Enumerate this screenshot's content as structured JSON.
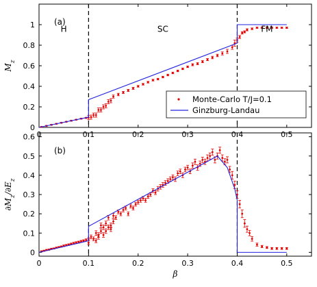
{
  "chart_data": [
    {
      "type": "scatter",
      "panel_label": "(a)",
      "ylabel": "M_z",
      "ylim": [
        0,
        1.2
      ],
      "xlim": [
        0,
        0.55
      ],
      "xticks": [
        "0",
        "0.1",
        "0.2",
        "0.3",
        "0.4",
        "0.5"
      ],
      "yticks": [
        "0",
        "0.2",
        "0.4",
        "0.6",
        "0.8",
        "1"
      ],
      "regions": [
        {
          "label": "H",
          "x": 0.05,
          "y": 0.93
        },
        {
          "label": "SC",
          "x": 0.25,
          "y": 0.93
        },
        {
          "label": "FM",
          "x": 0.46,
          "y": 0.93
        }
      ],
      "phase_boundaries": [
        0.1,
        0.4
      ],
      "legend": {
        "placement": "lower-right",
        "entries": [
          "Monte-Carlo T/J=0.1",
          "Ginzburg-Landau"
        ]
      },
      "series": [
        {
          "name": "Monte-Carlo T/J=0.1",
          "style": "scatter-errorbar",
          "color": "#e00000",
          "x": [
            0.005,
            0.015,
            0.025,
            0.035,
            0.045,
            0.055,
            0.065,
            0.075,
            0.085,
            0.095,
            0.1,
            0.105,
            0.11,
            0.115,
            0.12,
            0.125,
            0.13,
            0.135,
            0.14,
            0.145,
            0.15,
            0.16,
            0.17,
            0.18,
            0.19,
            0.2,
            0.21,
            0.22,
            0.23,
            0.24,
            0.25,
            0.26,
            0.27,
            0.28,
            0.29,
            0.3,
            0.31,
            0.32,
            0.33,
            0.34,
            0.35,
            0.36,
            0.37,
            0.38,
            0.39,
            0.395,
            0.4,
            0.405,
            0.41,
            0.415,
            0.42,
            0.43,
            0.44,
            0.45,
            0.46,
            0.47,
            0.48,
            0.49,
            0.5
          ],
          "y": [
            0.005,
            0.015,
            0.025,
            0.035,
            0.045,
            0.055,
            0.065,
            0.075,
            0.085,
            0.093,
            0.095,
            0.1,
            0.12,
            0.12,
            0.17,
            0.17,
            0.2,
            0.21,
            0.25,
            0.26,
            0.3,
            0.32,
            0.34,
            0.36,
            0.38,
            0.4,
            0.42,
            0.44,
            0.46,
            0.47,
            0.49,
            0.51,
            0.53,
            0.55,
            0.57,
            0.59,
            0.61,
            0.62,
            0.64,
            0.66,
            0.68,
            0.7,
            0.72,
            0.74,
            0.78,
            0.82,
            0.85,
            0.88,
            0.92,
            0.93,
            0.95,
            0.96,
            0.97,
            0.97,
            0.97,
            0.97,
            0.97,
            0.97,
            0.97
          ],
          "err": [
            0.004,
            0.004,
            0.004,
            0.004,
            0.004,
            0.004,
            0.004,
            0.004,
            0.004,
            0.005,
            0.02,
            0.02,
            0.02,
            0.02,
            0.02,
            0.02,
            0.02,
            0.02,
            0.02,
            0.02,
            0.015,
            0.012,
            0.01,
            0.01,
            0.01,
            0.008,
            0.008,
            0.008,
            0.008,
            0.008,
            0.008,
            0.008,
            0.008,
            0.008,
            0.008,
            0.008,
            0.01,
            0.01,
            0.01,
            0.01,
            0.012,
            0.012,
            0.015,
            0.02,
            0.02,
            0.03,
            0.02,
            0.015,
            0.012,
            0.01,
            0.01,
            0.008,
            0.006,
            0.006,
            0.006,
            0.006,
            0.006,
            0.006,
            0.006
          ]
        },
        {
          "name": "Ginzburg-Landau",
          "style": "line",
          "color": "#2020e0",
          "x": [
            0,
            0.1,
            0.1,
            0.4,
            0.4,
            0.5
          ],
          "y": [
            0,
            0.1,
            0.27,
            0.82,
            1.0,
            1.0
          ]
        }
      ]
    },
    {
      "type": "scatter",
      "panel_label": "(b)",
      "ylabel": "∂M_z/∂E_z",
      "xlabel": "β",
      "ylim": [
        -0.02,
        0.62
      ],
      "xlim": [
        0,
        0.55
      ],
      "xticks": [
        "0",
        "0.1",
        "0.2",
        "0.3",
        "0.4",
        "0.5"
      ],
      "yticks": [
        "0",
        "0.1",
        "0.2",
        "0.3",
        "0.4",
        "0.5",
        "0.6"
      ],
      "phase_boundaries": [
        0.1,
        0.4
      ],
      "series": [
        {
          "name": "Monte-Carlo T/J=0.1",
          "style": "scatter-errorbar",
          "color": "#e00000",
          "x": [
            0.005,
            0.01,
            0.015,
            0.02,
            0.025,
            0.03,
            0.035,
            0.04,
            0.045,
            0.05,
            0.055,
            0.06,
            0.065,
            0.07,
            0.075,
            0.08,
            0.085,
            0.09,
            0.095,
            0.1,
            0.1,
            0.105,
            0.11,
            0.115,
            0.115,
            0.12,
            0.12,
            0.125,
            0.125,
            0.13,
            0.13,
            0.135,
            0.135,
            0.14,
            0.14,
            0.145,
            0.145,
            0.15,
            0.15,
            0.155,
            0.16,
            0.165,
            0.17,
            0.175,
            0.18,
            0.185,
            0.19,
            0.195,
            0.2,
            0.205,
            0.21,
            0.215,
            0.22,
            0.225,
            0.23,
            0.235,
            0.24,
            0.245,
            0.25,
            0.255,
            0.26,
            0.265,
            0.27,
            0.275,
            0.28,
            0.285,
            0.29,
            0.295,
            0.3,
            0.305,
            0.31,
            0.315,
            0.32,
            0.325,
            0.33,
            0.335,
            0.34,
            0.345,
            0.35,
            0.355,
            0.36,
            0.365,
            0.37,
            0.375,
            0.38,
            0.385,
            0.39,
            0.395,
            0.4,
            0.405,
            0.41,
            0.415,
            0.42,
            0.425,
            0.43,
            0.44,
            0.45,
            0.46,
            0.47,
            0.48,
            0.49,
            0.5
          ],
          "y": [
            0.005,
            0.008,
            0.012,
            0.014,
            0.018,
            0.02,
            0.024,
            0.027,
            0.03,
            0.034,
            0.037,
            0.04,
            0.044,
            0.047,
            0.05,
            0.053,
            0.057,
            0.06,
            0.064,
            0.068,
            0.05,
            0.08,
            0.07,
            0.1,
            0.06,
            0.08,
            0.09,
            0.11,
            0.14,
            0.09,
            0.13,
            0.15,
            0.11,
            0.13,
            0.18,
            0.14,
            0.12,
            0.19,
            0.16,
            0.18,
            0.21,
            0.2,
            0.22,
            0.23,
            0.2,
            0.24,
            0.23,
            0.25,
            0.26,
            0.27,
            0.28,
            0.27,
            0.29,
            0.3,
            0.32,
            0.31,
            0.33,
            0.34,
            0.35,
            0.36,
            0.37,
            0.38,
            0.39,
            0.38,
            0.41,
            0.42,
            0.4,
            0.43,
            0.44,
            0.42,
            0.45,
            0.47,
            0.44,
            0.46,
            0.48,
            0.47,
            0.49,
            0.5,
            0.52,
            0.48,
            0.5,
            0.53,
            0.49,
            0.47,
            0.48,
            0.43,
            0.4,
            0.35,
            0.3,
            0.25,
            0.2,
            0.15,
            0.12,
            0.1,
            0.07,
            0.04,
            0.03,
            0.025,
            0.02,
            0.02,
            0.02,
            0.02
          ],
          "err": [
            0.003,
            0.003,
            0.003,
            0.003,
            0.003,
            0.003,
            0.003,
            0.003,
            0.003,
            0.004,
            0.004,
            0.004,
            0.004,
            0.005,
            0.005,
            0.005,
            0.005,
            0.005,
            0.006,
            0.008,
            0.01,
            0.01,
            0.01,
            0.012,
            0.01,
            0.012,
            0.012,
            0.012,
            0.012,
            0.012,
            0.012,
            0.012,
            0.012,
            0.012,
            0.012,
            0.012,
            0.012,
            0.012,
            0.012,
            0.01,
            0.01,
            0.01,
            0.01,
            0.01,
            0.01,
            0.01,
            0.01,
            0.01,
            0.01,
            0.01,
            0.01,
            0.01,
            0.01,
            0.01,
            0.01,
            0.01,
            0.012,
            0.012,
            0.012,
            0.012,
            0.012,
            0.012,
            0.012,
            0.012,
            0.012,
            0.012,
            0.012,
            0.012,
            0.012,
            0.012,
            0.014,
            0.014,
            0.014,
            0.014,
            0.014,
            0.014,
            0.016,
            0.016,
            0.016,
            0.016,
            0.016,
            0.016,
            0.016,
            0.016,
            0.016,
            0.016,
            0.02,
            0.02,
            0.02,
            0.02,
            0.02,
            0.02,
            0.016,
            0.014,
            0.012,
            0.008,
            0.006,
            0.005,
            0.005,
            0.005,
            0.005,
            0.005
          ]
        },
        {
          "name": "Ginzburg-Landau",
          "style": "line",
          "color": "#2020e0",
          "x": [
            0,
            0.1,
            0.1,
            0.36,
            0.38,
            0.395,
            0.4,
            0.4,
            0.5
          ],
          "y": [
            0,
            0.06,
            0.135,
            0.5,
            0.44,
            0.33,
            0.27,
            0.0,
            0.0
          ]
        }
      ]
    }
  ]
}
